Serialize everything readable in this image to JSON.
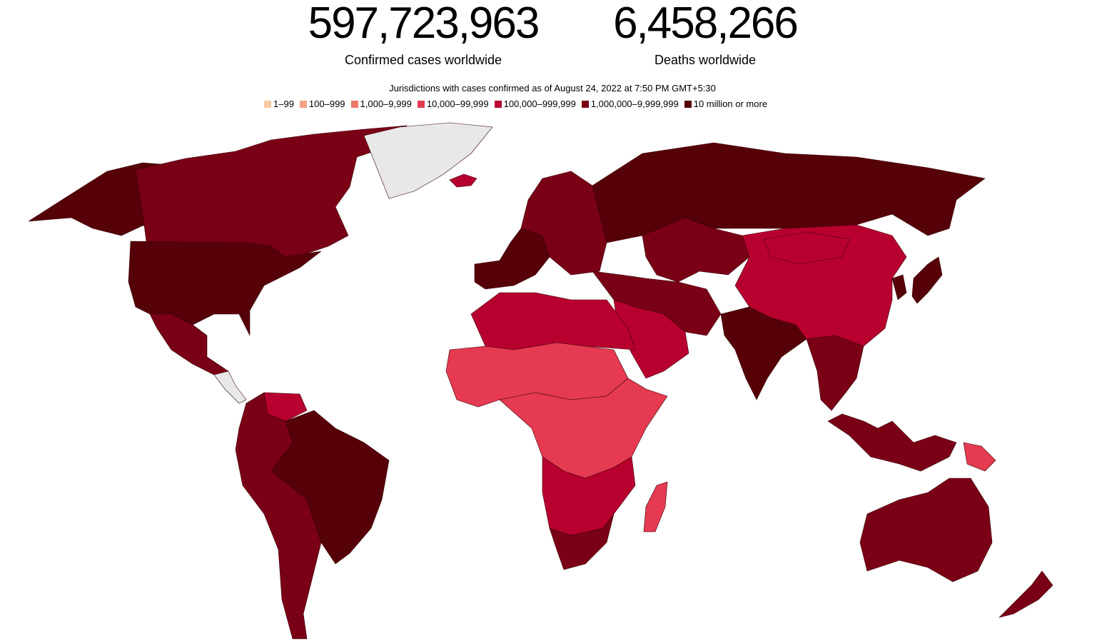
{
  "stats": {
    "cases": {
      "value": "597,723,963",
      "label": "Confirmed cases worldwide"
    },
    "deaths": {
      "value": "6,458,266",
      "label": "Deaths worldwide"
    }
  },
  "legend": {
    "title": "Jurisdictions with cases confirmed as of August 24, 2022 at 7:50 PM GMT+5:30",
    "items": [
      {
        "label": "1–99",
        "color": "#f9caa2"
      },
      {
        "label": "100–999",
        "color": "#f4a288"
      },
      {
        "label": "1,000–9,999",
        "color": "#ef7a6c"
      },
      {
        "label": "10,000–99,999",
        "color": "#e53a51"
      },
      {
        "label": "100,000–999,999",
        "color": "#b8002e"
      },
      {
        "label": "1,000,000–9,999,999",
        "color": "#7a0016"
      },
      {
        "label": "10 million or more",
        "color": "#560008"
      }
    ]
  },
  "map": {
    "no_data_color": "#e8e8e8",
    "regions": [
      {
        "name": "United States",
        "bin": "10 million or more"
      },
      {
        "name": "Canada",
        "bin": "1,000,000–9,999,999"
      },
      {
        "name": "Alaska",
        "bin": "10 million or more"
      },
      {
        "name": "Greenland",
        "bin": "no data"
      },
      {
        "name": "Mexico",
        "bin": "1,000,000–9,999,999"
      },
      {
        "name": "Brazil",
        "bin": "10 million or more"
      },
      {
        "name": "South America",
        "bin": "1,000,000–9,999,999"
      },
      {
        "name": "Venezuela",
        "bin": "100,000–999,999"
      },
      {
        "name": "Europe",
        "bin": "1,000,000–9,999,999"
      },
      {
        "name": "Western Europe",
        "bin": "10 million or more"
      },
      {
        "name": "Russia",
        "bin": "10 million or more"
      },
      {
        "name": "Kazakhstan",
        "bin": "1,000,000–9,999,999"
      },
      {
        "name": "China",
        "bin": "100,000–999,999"
      },
      {
        "name": "Mongolia",
        "bin": "100,000–999,999"
      },
      {
        "name": "India",
        "bin": "10 million or more"
      },
      {
        "name": "Middle East",
        "bin": "1,000,000–9,999,999"
      },
      {
        "name": "Arabian Peninsula",
        "bin": "100,000–999,999"
      },
      {
        "name": "North Africa",
        "bin": "100,000–999,999"
      },
      {
        "name": "Sahel",
        "bin": "10,000–99,999"
      },
      {
        "name": "Central Africa",
        "bin": "10,000–99,999"
      },
      {
        "name": "Southern Africa",
        "bin": "100,000–999,999"
      },
      {
        "name": "South Africa",
        "bin": "1,000,000–9,999,999"
      },
      {
        "name": "Madagascar",
        "bin": "10,000–99,999"
      },
      {
        "name": "Southeast Asia",
        "bin": "1,000,000–9,999,999"
      },
      {
        "name": "Indonesia",
        "bin": "1,000,000–9,999,999"
      },
      {
        "name": "Papua New Guinea",
        "bin": "10,000–99,999"
      },
      {
        "name": "Japan",
        "bin": "10 million or more"
      },
      {
        "name": "Korea",
        "bin": "10 million or more"
      },
      {
        "name": "Australia",
        "bin": "1,000,000–9,999,999"
      },
      {
        "name": "New Zealand",
        "bin": "1,000,000–9,999,999"
      },
      {
        "name": "Iceland",
        "bin": "100,000–999,999"
      }
    ]
  }
}
